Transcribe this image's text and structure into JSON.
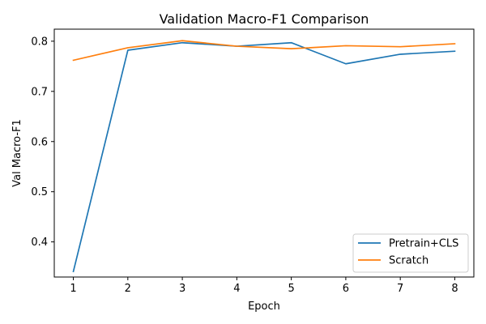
{
  "chart_data": {
    "type": "line",
    "title": "Validation Macro-F1 Comparison",
    "xlabel": "Epoch",
    "ylabel": "Val Macro-F1",
    "x": [
      1,
      2,
      3,
      4,
      5,
      6,
      7,
      8
    ],
    "xticks": [
      "1",
      "2",
      "3",
      "4",
      "5",
      "6",
      "7",
      "8"
    ],
    "yticks": [
      "0.4",
      "0.5",
      "0.6",
      "0.7",
      "0.8"
    ],
    "xlim": [
      0.65,
      8.35
    ],
    "ylim": [
      0.33,
      0.824
    ],
    "grid": false,
    "legend_position": "lower-right",
    "series": [
      {
        "name": "Pretrain+CLS",
        "color": "#1f77b4",
        "values": [
          0.341,
          0.782,
          0.797,
          0.79,
          0.797,
          0.755,
          0.774,
          0.78
        ]
      },
      {
        "name": "Scratch",
        "color": "#ff7f0e",
        "values": [
          0.762,
          0.787,
          0.801,
          0.79,
          0.785,
          0.791,
          0.789,
          0.795
        ]
      }
    ]
  }
}
